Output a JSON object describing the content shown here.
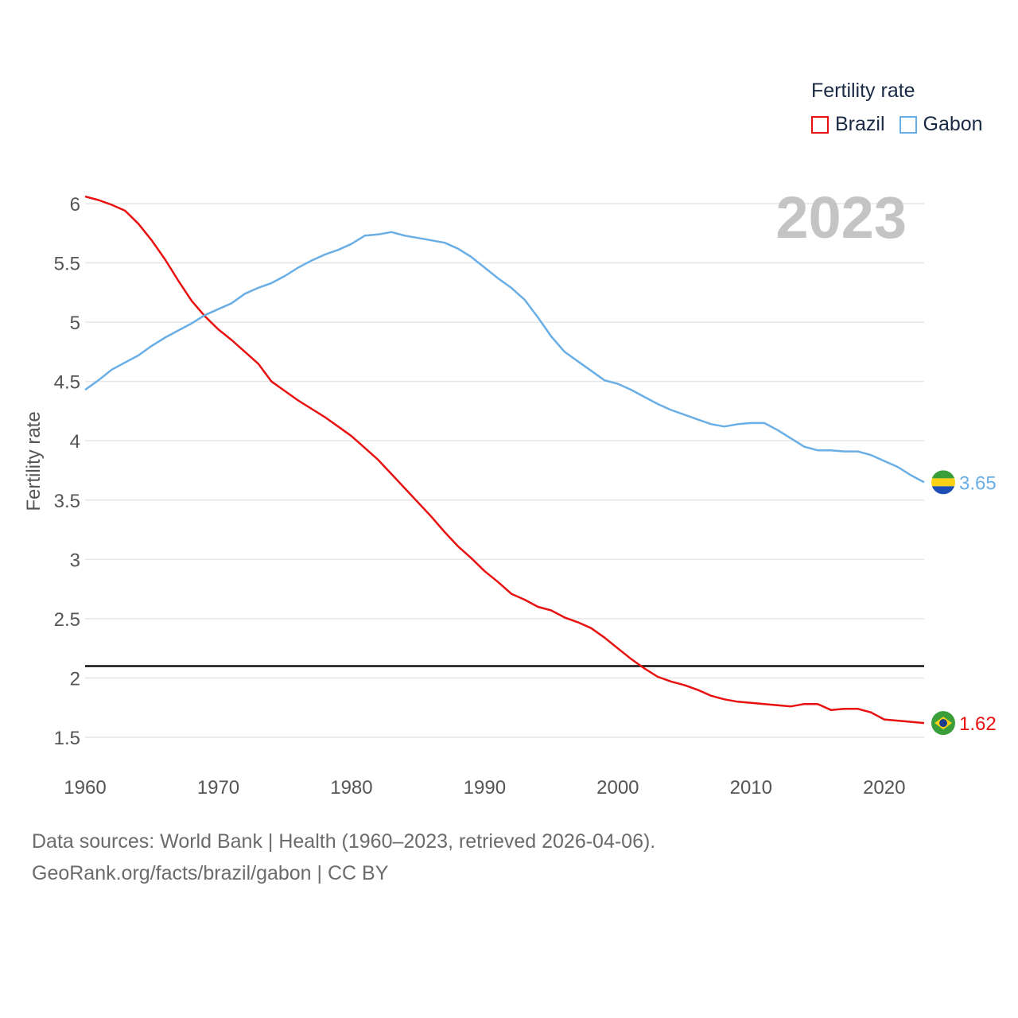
{
  "legend": {
    "title": "Fertility rate",
    "items": [
      {
        "name": "Brazil",
        "color": "#e81010"
      },
      {
        "name": "Gabon",
        "color": "#6aaee6"
      }
    ]
  },
  "footer": {
    "line1": "Data sources: World Bank | Health (1960–2023, retrieved 2026-04-06).",
    "line2": "GeoRank.org/facts/brazil/gabon | CC BY"
  },
  "chart_data": {
    "type": "line",
    "year_label": "2023",
    "ylabel": "Fertility rate",
    "xlabel": "",
    "xlim": [
      1960,
      2023
    ],
    "ylim": [
      1.2,
      6.2
    ],
    "x_ticks": [
      1960,
      1970,
      1980,
      1990,
      2000,
      2010,
      2020
    ],
    "y_ticks": [
      1.5,
      2,
      2.5,
      3,
      3.5,
      4,
      4.5,
      5,
      5.5,
      6
    ],
    "reference_line": 2.1,
    "x": [
      1960,
      1961,
      1962,
      1963,
      1964,
      1965,
      1966,
      1967,
      1968,
      1969,
      1970,
      1971,
      1972,
      1973,
      1974,
      1975,
      1976,
      1977,
      1978,
      1979,
      1980,
      1981,
      1982,
      1983,
      1984,
      1985,
      1986,
      1987,
      1988,
      1989,
      1990,
      1991,
      1992,
      1993,
      1994,
      1995,
      1996,
      1997,
      1998,
      1999,
      2000,
      2001,
      2002,
      2003,
      2004,
      2005,
      2006,
      2007,
      2008,
      2009,
      2010,
      2011,
      2012,
      2013,
      2014,
      2015,
      2016,
      2017,
      2018,
      2019,
      2020,
      2021,
      2022,
      2023
    ],
    "series": [
      {
        "name": "Brazil",
        "color": "#e81010",
        "end_label": "1.62",
        "values": [
          6.06,
          6.03,
          5.99,
          5.94,
          5.83,
          5.69,
          5.53,
          5.35,
          5.18,
          5.05,
          4.94,
          4.85,
          4.75,
          4.65,
          4.5,
          4.42,
          4.34,
          4.27,
          4.2,
          4.12,
          4.04,
          3.94,
          3.84,
          3.72,
          3.6,
          3.48,
          3.36,
          3.23,
          3.11,
          3.01,
          2.9,
          2.81,
          2.71,
          2.66,
          2.6,
          2.57,
          2.51,
          2.47,
          2.42,
          2.34,
          2.25,
          2.16,
          2.08,
          2.01,
          1.97,
          1.94,
          1.9,
          1.85,
          1.82,
          1.8,
          1.79,
          1.78,
          1.77,
          1.76,
          1.78,
          1.78,
          1.73,
          1.74,
          1.74,
          1.71,
          1.65,
          1.64,
          1.63,
          1.62
        ]
      },
      {
        "name": "Gabon",
        "color": "#6aaee6",
        "end_label": "3.65",
        "values": [
          4.43,
          4.51,
          4.6,
          4.66,
          4.72,
          4.8,
          4.87,
          4.93,
          4.99,
          5.06,
          5.11,
          5.16,
          5.24,
          5.29,
          5.33,
          5.39,
          5.46,
          5.52,
          5.57,
          5.61,
          5.66,
          5.73,
          5.74,
          5.76,
          5.73,
          5.71,
          5.69,
          5.67,
          5.62,
          5.55,
          5.46,
          5.37,
          5.29,
          5.19,
          5.04,
          4.88,
          4.75,
          4.67,
          4.59,
          4.51,
          4.48,
          4.43,
          4.37,
          4.31,
          4.26,
          4.22,
          4.18,
          4.14,
          4.12,
          4.14,
          4.15,
          4.15,
          4.09,
          4.02,
          3.95,
          3.92,
          3.92,
          3.91,
          3.91,
          3.88,
          3.83,
          3.78,
          3.71,
          3.65
        ]
      }
    ]
  }
}
